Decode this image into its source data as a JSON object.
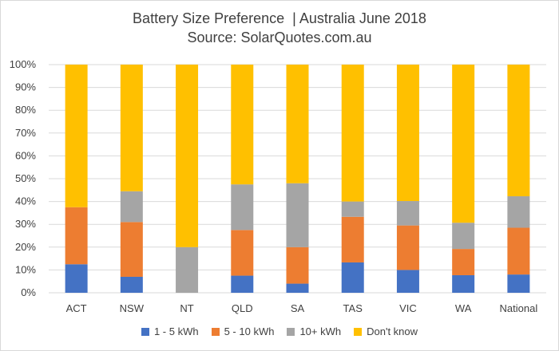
{
  "header": {
    "title": "Battery Size Preference  | Australia June 2018",
    "subtitle": "Source: SolarQuotes.com.au"
  },
  "chart_data": {
    "type": "bar",
    "stacked": true,
    "title": "Battery Size Preference  | Australia June 2018",
    "subtitle": "Source: SolarQuotes.com.au",
    "categories": [
      "ACT",
      "NSW",
      "NT",
      "QLD",
      "SA",
      "TAS",
      "VIC",
      "WA",
      "National"
    ],
    "yticks": [
      "0%",
      "10%",
      "20%",
      "30%",
      "40%",
      "50%",
      "60%",
      "70%",
      "80%",
      "90%",
      "100%"
    ],
    "ylim": [
      0,
      100
    ],
    "grid": true,
    "legend_position": "bottom",
    "series": [
      {
        "name": "1 - 5 kWh",
        "color": "#4472c4",
        "values": [
          12.5,
          7,
          0,
          7.5,
          4,
          13.3,
          10,
          7.7,
          8
        ]
      },
      {
        "name": "5 - 10 kWh",
        "color": "#ed7d31",
        "values": [
          25,
          24,
          0,
          20,
          16,
          20,
          19.5,
          11.5,
          20.5
        ]
      },
      {
        "name": "10+ kWh",
        "color": "#a5a5a5",
        "values": [
          0,
          13.5,
          20,
          20,
          28,
          6.7,
          10.7,
          11.5,
          13.8
        ]
      },
      {
        "name": "Don't know",
        "color": "#ffc000",
        "values": [
          62.5,
          55.5,
          80,
          52.5,
          52,
          60,
          59.8,
          69.3,
          57.7
        ]
      }
    ]
  }
}
